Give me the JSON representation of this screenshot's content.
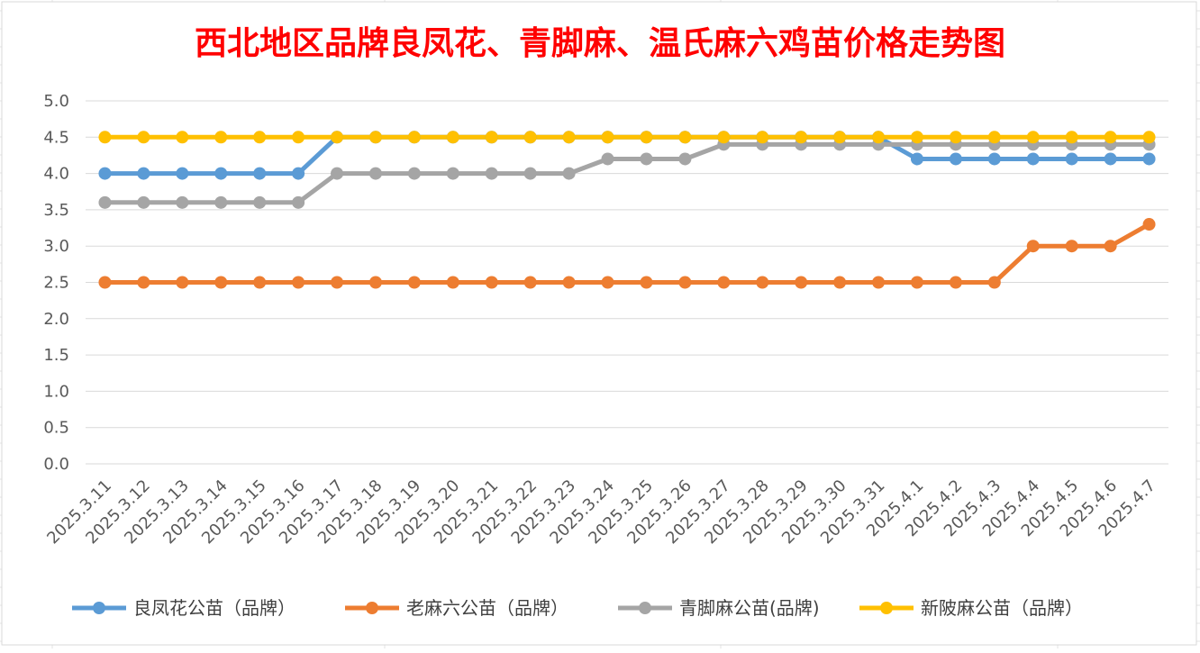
{
  "chart_data": {
    "type": "line",
    "title": "西北地区品牌良凤花、青脚麻、温氏麻六鸡苗价格走势图",
    "xlabel": "",
    "ylabel": "",
    "ylim": [
      0,
      5
    ],
    "ytick_labels": [
      "0.0",
      "0.5",
      "1.0",
      "1.5",
      "2.0",
      "2.5",
      "3.0",
      "3.5",
      "4.0",
      "4.5",
      "5.0"
    ],
    "grid": true,
    "legend_position": "bottom",
    "categories": [
      "2025.3.11",
      "2025.3.12",
      "2025.3.13",
      "2025.3.14",
      "2025.3.15",
      "2025.3.16",
      "2025.3.17",
      "2025.3.18",
      "2025.3.19",
      "2025.3.20",
      "2025.3.21",
      "2025.3.22",
      "2025.3.23",
      "2025.3.24",
      "2025.3.25",
      "2025.3.26",
      "2025.3.27",
      "2025.3.28",
      "2025.3.29",
      "2025.3.30",
      "2025.3.31",
      "2025.4.1",
      "2025.4.2",
      "2025.4.3",
      "2025.4.4",
      "2025.4.5",
      "2025.4.6",
      "2025.4.7"
    ],
    "series": [
      {
        "name": "良凤花公苗（品牌）",
        "color": "#5B9BD5",
        "values": [
          4.0,
          4.0,
          4.0,
          4.0,
          4.0,
          4.0,
          4.5,
          4.5,
          4.5,
          4.5,
          4.5,
          4.5,
          4.5,
          4.5,
          4.5,
          4.5,
          4.5,
          4.5,
          4.5,
          4.5,
          4.5,
          4.2,
          4.2,
          4.2,
          4.2,
          4.2,
          4.2,
          4.2
        ]
      },
      {
        "name": "老麻六公苗（品牌）",
        "color": "#ED7D31",
        "values": [
          2.5,
          2.5,
          2.5,
          2.5,
          2.5,
          2.5,
          2.5,
          2.5,
          2.5,
          2.5,
          2.5,
          2.5,
          2.5,
          2.5,
          2.5,
          2.5,
          2.5,
          2.5,
          2.5,
          2.5,
          2.5,
          2.5,
          2.5,
          2.5,
          3.0,
          3.0,
          3.0,
          3.3
        ]
      },
      {
        "name": "青脚麻公苗(品牌)",
        "color": "#A5A5A5",
        "values": [
          3.6,
          3.6,
          3.6,
          3.6,
          3.6,
          3.6,
          4.0,
          4.0,
          4.0,
          4.0,
          4.0,
          4.0,
          4.0,
          4.2,
          4.2,
          4.2,
          4.4,
          4.4,
          4.4,
          4.4,
          4.4,
          4.4,
          4.4,
          4.4,
          4.4,
          4.4,
          4.4,
          4.4
        ]
      },
      {
        "name": "新陂麻公苗（品牌）",
        "color": "#FFC000",
        "values": [
          4.5,
          4.5,
          4.5,
          4.5,
          4.5,
          4.5,
          4.5,
          4.5,
          4.5,
          4.5,
          4.5,
          4.5,
          4.5,
          4.5,
          4.5,
          4.5,
          4.5,
          4.5,
          4.5,
          4.5,
          4.5,
          4.5,
          4.5,
          4.5,
          4.5,
          4.5,
          4.5,
          4.5
        ]
      }
    ]
  },
  "colors": {
    "title": "#FF0000"
  }
}
